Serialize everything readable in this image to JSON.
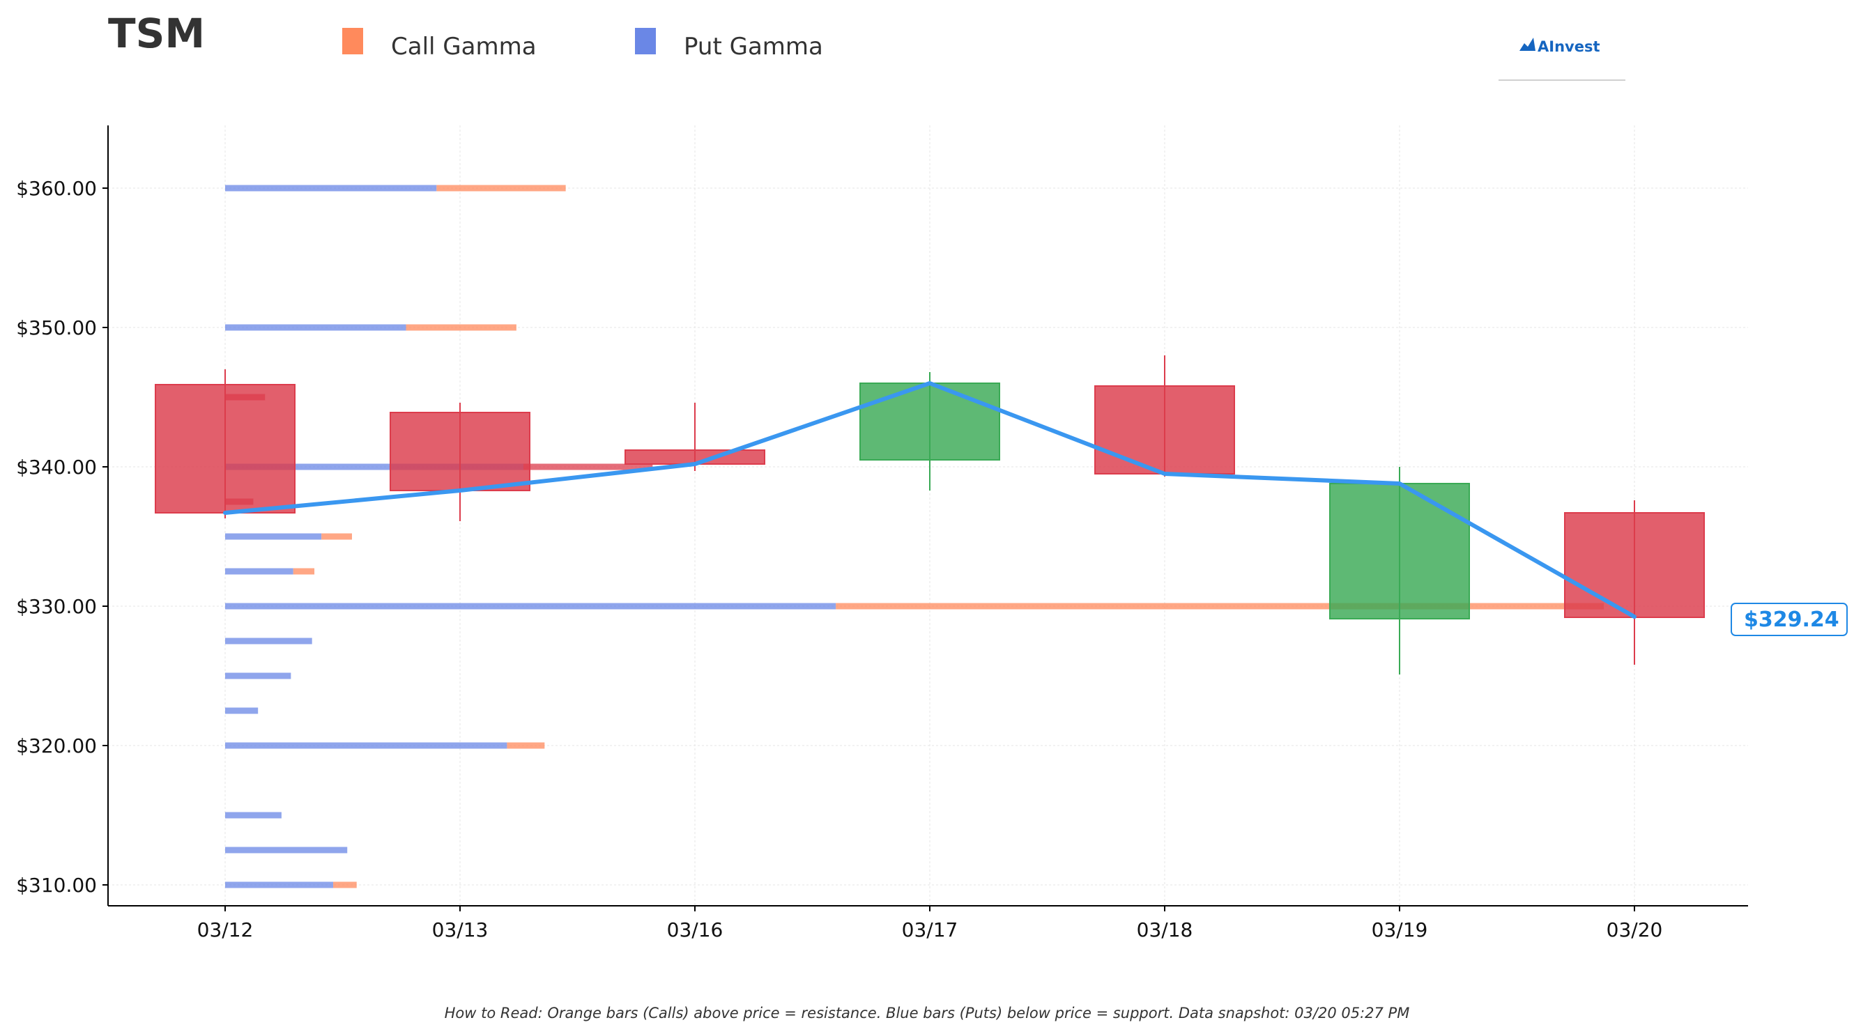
{
  "chart_data": {
    "type": "candlestick",
    "title": "TSM",
    "legend": [
      {
        "name": "Call Gamma",
        "color": "#ff8a5c"
      },
      {
        "name": "Put Gamma",
        "color": "#6a87e6"
      }
    ],
    "legend_placement": "top",
    "categories": [
      "03/12",
      "03/13",
      "03/16",
      "03/17",
      "03/18",
      "03/19",
      "03/20"
    ],
    "ylim": [
      308.5,
      364.5
    ],
    "yticks": [
      {
        "value": 310,
        "label": "$310.00"
      },
      {
        "value": 320,
        "label": "$320.00"
      },
      {
        "value": 330,
        "label": "$330.00"
      },
      {
        "value": 340,
        "label": "$340.00"
      },
      {
        "value": 350,
        "label": "$350.00"
      },
      {
        "value": 360,
        "label": "$360.00"
      }
    ],
    "grid": true,
    "candles": [
      {
        "date": "03/12",
        "open": 345.9,
        "high": 347.0,
        "low": 336.3,
        "close": 336.7
      },
      {
        "date": "03/13",
        "open": 343.9,
        "high": 344.6,
        "low": 336.1,
        "close": 338.3
      },
      {
        "date": "03/16",
        "open": 341.2,
        "high": 344.6,
        "low": 339.7,
        "close": 340.2
      },
      {
        "date": "03/17",
        "open": 340.5,
        "high": 346.8,
        "low": 338.3,
        "close": 346.0
      },
      {
        "date": "03/18",
        "open": 345.8,
        "high": 348.0,
        "low": 339.3,
        "close": 339.5
      },
      {
        "date": "03/19",
        "open": 329.1,
        "high": 340.0,
        "low": 325.1,
        "close": 338.8
      },
      {
        "date": "03/20",
        "open": 336.7,
        "high": 337.6,
        "low": 325.8,
        "close": 329.2
      }
    ],
    "price_line": [
      336.7,
      338.3,
      340.2,
      346.0,
      339.5,
      338.8,
      329.24
    ],
    "price_line_color": "#3a97f0",
    "up_color": "#3aaa55",
    "down_color": "#dc3c4c",
    "last_price_label": "$329.24",
    "gamma_bars": [
      {
        "strike": 360,
        "put": 0.9,
        "call": 0.55
      },
      {
        "strike": 350,
        "put": 0.77,
        "call": 0.47
      },
      {
        "strike": 345,
        "put": 0.0,
        "call": 0.17,
        "call_color": "#dc3c4c"
      },
      {
        "strike": 340,
        "put": 1.27,
        "call": 0.55,
        "call_color": "#dc3c4c"
      },
      {
        "strike": 337.5,
        "put": 0.0,
        "call": 0.12,
        "call_color": "#dc3c4c"
      },
      {
        "strike": 335,
        "put": 0.41,
        "call": 0.13
      },
      {
        "strike": 332.5,
        "put": 0.29,
        "call": 0.09
      },
      {
        "strike": 330,
        "put": 2.6,
        "call": 3.27
      },
      {
        "strike": 327.5,
        "put": 0.37,
        "call": 0
      },
      {
        "strike": 325,
        "put": 0.28,
        "call": 0
      },
      {
        "strike": 322.5,
        "put": 0.14,
        "call": 0
      },
      {
        "strike": 320,
        "put": 1.2,
        "call": 0.16
      },
      {
        "strike": 315,
        "put": 0.24,
        "call": 0
      },
      {
        "strike": 312.5,
        "put": 0.52,
        "call": 0
      },
      {
        "strike": 310,
        "put": 0.46,
        "call": 0.1
      }
    ],
    "gamma_unit_days": 1,
    "note": "How to Read: Orange bars (Calls) above price = resistance. Blue bars (Puts) below price = support. Data snapshot: 03/20 05:27 PM"
  },
  "brand": {
    "name": "AInvest",
    "icon": "chart-up-icon",
    "color": "#1565c0"
  }
}
